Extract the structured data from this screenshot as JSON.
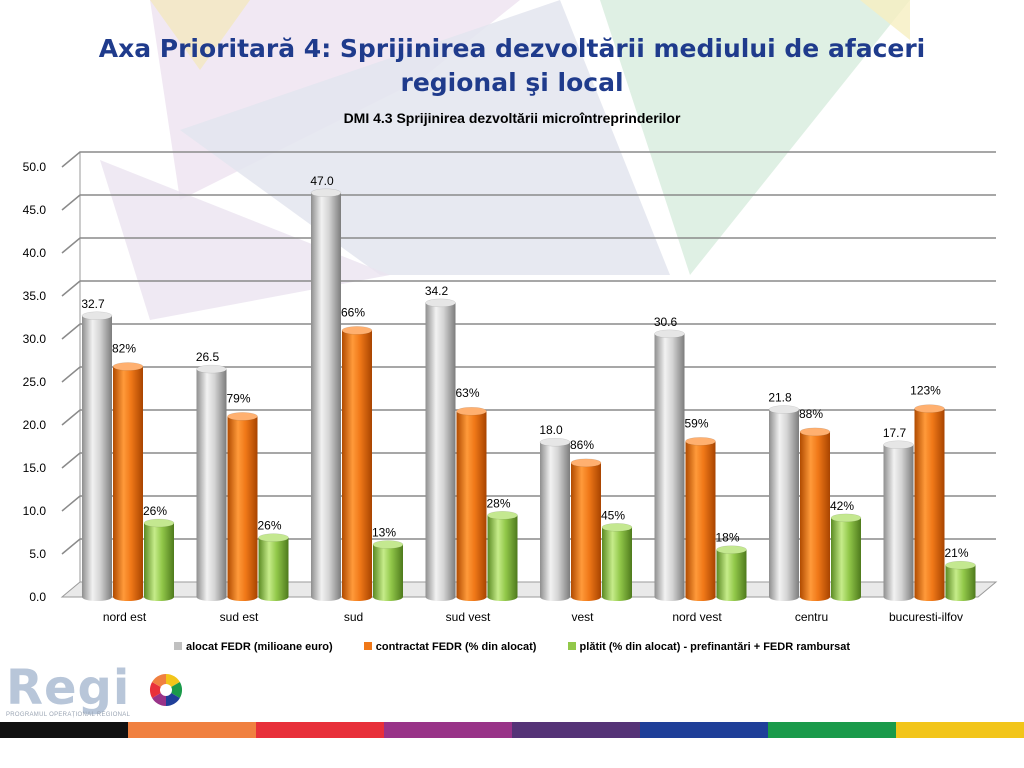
{
  "slide": {
    "title": "Axa Prioritară 4: Sprijinirea dezvoltării mediului de afaceri regional şi  local",
    "logo_text": "Regi",
    "logo_subtitle": "PROGRAMUL OPERAȚIONAL REGIONAL",
    "bottom_bar_colors": [
      "#111111",
      "#f08040",
      "#e8303a",
      "#993388",
      "#553377",
      "#1f3f99",
      "#1a9a4a",
      "#f2c51a"
    ]
  },
  "chart_data": {
    "type": "bar",
    "title": "DMI 4.3 Sprijinirea dezvoltării microîntreprinderilor",
    "categories": [
      "nord est",
      "sud est",
      "sud",
      "sud vest",
      "vest",
      "nord vest",
      "centru",
      "bucuresti-ilfov"
    ],
    "ylim": [
      0,
      50
    ],
    "yticks": [
      "0.0",
      "5.0",
      "10.0",
      "15.0",
      "20.0",
      "25.0",
      "30.0",
      "35.0",
      "40.0",
      "45.0",
      "50.0"
    ],
    "grid": true,
    "legend_position": "bottom",
    "series": [
      {
        "name": "alocat FEDR (milioane euro)",
        "color": "#c8c8c8",
        "values": [
          32.7,
          26.5,
          47.0,
          34.2,
          18.0,
          30.6,
          21.8,
          17.7
        ],
        "labels": [
          "32.7",
          "26.5",
          "47.0",
          "34.2",
          "18.0",
          "30.6",
          "21.8",
          "17.7"
        ]
      },
      {
        "name": "contractat FEDR (% din alocat)",
        "color": "#f07818",
        "values": [
          26.8,
          21.0,
          31.0,
          21.6,
          15.6,
          18.1,
          19.2,
          21.9
        ],
        "labels": [
          "82%",
          "79%",
          "66%",
          "63%",
          "86%",
          "59%",
          "88%",
          "123%"
        ]
      },
      {
        "name": "plătit (% din alocat) - prefinantări + FEDR rambursat",
        "color": "#92c84a",
        "values": [
          8.6,
          6.9,
          6.1,
          9.5,
          8.1,
          5.5,
          9.2,
          3.7
        ],
        "labels": [
          "26%",
          "26%",
          "13%",
          "28%",
          "45%",
          "18%",
          "42%",
          "21%"
        ]
      }
    ]
  }
}
